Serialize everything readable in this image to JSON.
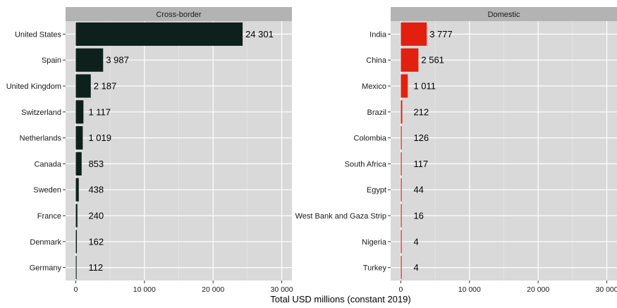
{
  "chart_data": [
    {
      "type": "bar",
      "orientation": "horizontal",
      "panel_title": "Cross-border",
      "categories": [
        "United States",
        "Spain",
        "United Kingdom",
        "Switzerland",
        "Netherlands",
        "Canada",
        "Sweden",
        "France",
        "Denmark",
        "Germany"
      ],
      "values": [
        24301,
        3987,
        2187,
        1117,
        1019,
        853,
        438,
        240,
        162,
        112
      ],
      "value_labels": [
        "24 301",
        "3 987",
        "2 187",
        "1 117",
        "1 019",
        "853",
        "438",
        "240",
        "162",
        "112"
      ],
      "bar_color": "#0d201b",
      "xlim": [
        0,
        30000
      ],
      "xticks": [
        0,
        10000,
        20000,
        30000
      ],
      "xtick_labels": [
        "0",
        "10 000",
        "20 000",
        "30 000"
      ]
    },
    {
      "type": "bar",
      "orientation": "horizontal",
      "panel_title": "Domestic",
      "categories": [
        "India",
        "China",
        "Mexico",
        "Brazil",
        "Colombia",
        "South Africa",
        "Egypt",
        "West Bank and Gaza Strip",
        "Nigeria",
        "Turkey"
      ],
      "values": [
        3777,
        2561,
        1011,
        212,
        126,
        117,
        44,
        16,
        4,
        4
      ],
      "value_labels": [
        "3 777",
        "2 561",
        "1 011",
        "212",
        "126",
        "117",
        "44",
        "16",
        "4",
        "4"
      ],
      "bar_color": "#e2200f",
      "xlim": [
        0,
        30000
      ],
      "xticks": [
        0,
        10000,
        20000,
        30000
      ],
      "xtick_labels": [
        "0",
        "10 000",
        "20 000",
        "30 000"
      ]
    }
  ],
  "shared": {
    "xlabel": "Total USD millions (constant 2019)",
    "panel_background": "#d9d9d9",
    "strip_background": "#b3b3b3",
    "grid": true,
    "legend": "none"
  }
}
